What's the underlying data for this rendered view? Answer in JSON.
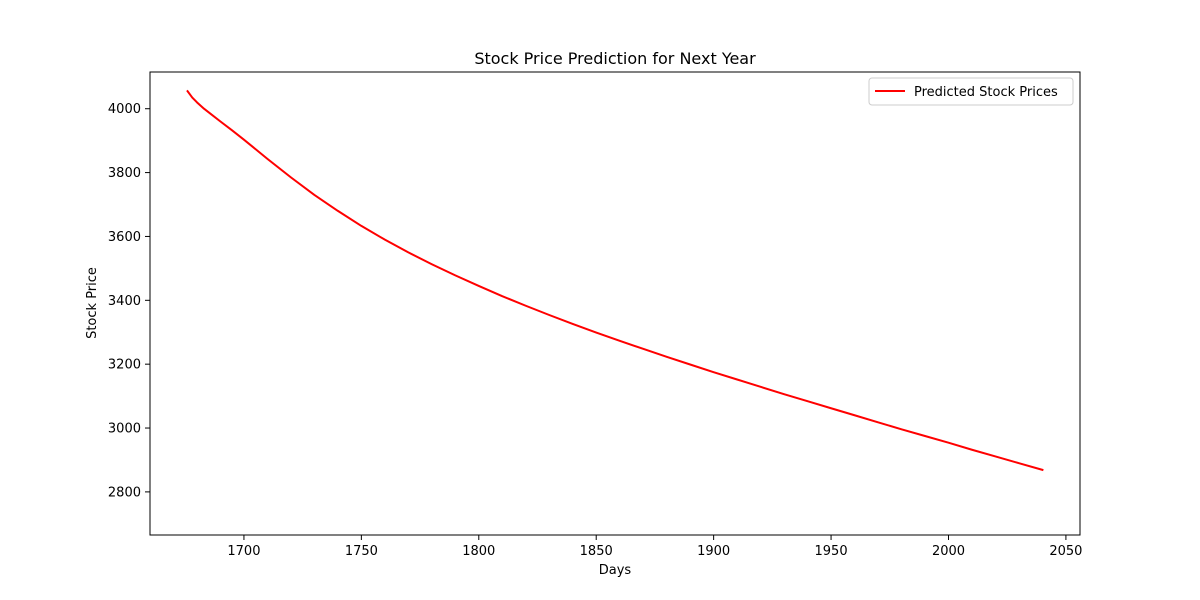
{
  "chart_data": {
    "type": "line",
    "title": "Stock Price Prediction for Next Year",
    "xlabel": "Days",
    "ylabel": "Stock Price",
    "xlim": [
      1660,
      2056
    ],
    "ylim": [
      2665,
      4115
    ],
    "xticks": [
      1700,
      1750,
      1800,
      1850,
      1900,
      1950,
      2000,
      2050
    ],
    "yticks": [
      2800,
      3000,
      3200,
      3400,
      3600,
      3800,
      4000
    ],
    "grid": false,
    "legend_position": "top-right",
    "series": [
      {
        "name": "Predicted Stock Prices",
        "color": "#ff0000",
        "x": [
          1676,
          1678,
          1680,
          1683,
          1686,
          1690,
          1695,
          1700,
          1705,
          1710,
          1720,
          1730,
          1740,
          1750,
          1760,
          1770,
          1780,
          1790,
          1800,
          1810,
          1820,
          1830,
          1840,
          1850,
          1860,
          1870,
          1880,
          1890,
          1900,
          1910,
          1920,
          1930,
          1940,
          1950,
          1960,
          1970,
          1980,
          1990,
          2000,
          2010,
          2020,
          2030,
          2040
        ],
        "y": [
          4055,
          4035,
          4020,
          4000,
          3983,
          3960,
          3932,
          3903,
          3873,
          3843,
          3785,
          3730,
          3680,
          3633,
          3590,
          3550,
          3513,
          3478,
          3445,
          3413,
          3383,
          3354,
          3326,
          3299,
          3273,
          3248,
          3223,
          3199,
          3175,
          3152,
          3129,
          3106,
          3084,
          3062,
          3040,
          3018,
          2996,
          2975,
          2954,
          2932,
          2911,
          2890,
          2869
        ]
      }
    ]
  }
}
